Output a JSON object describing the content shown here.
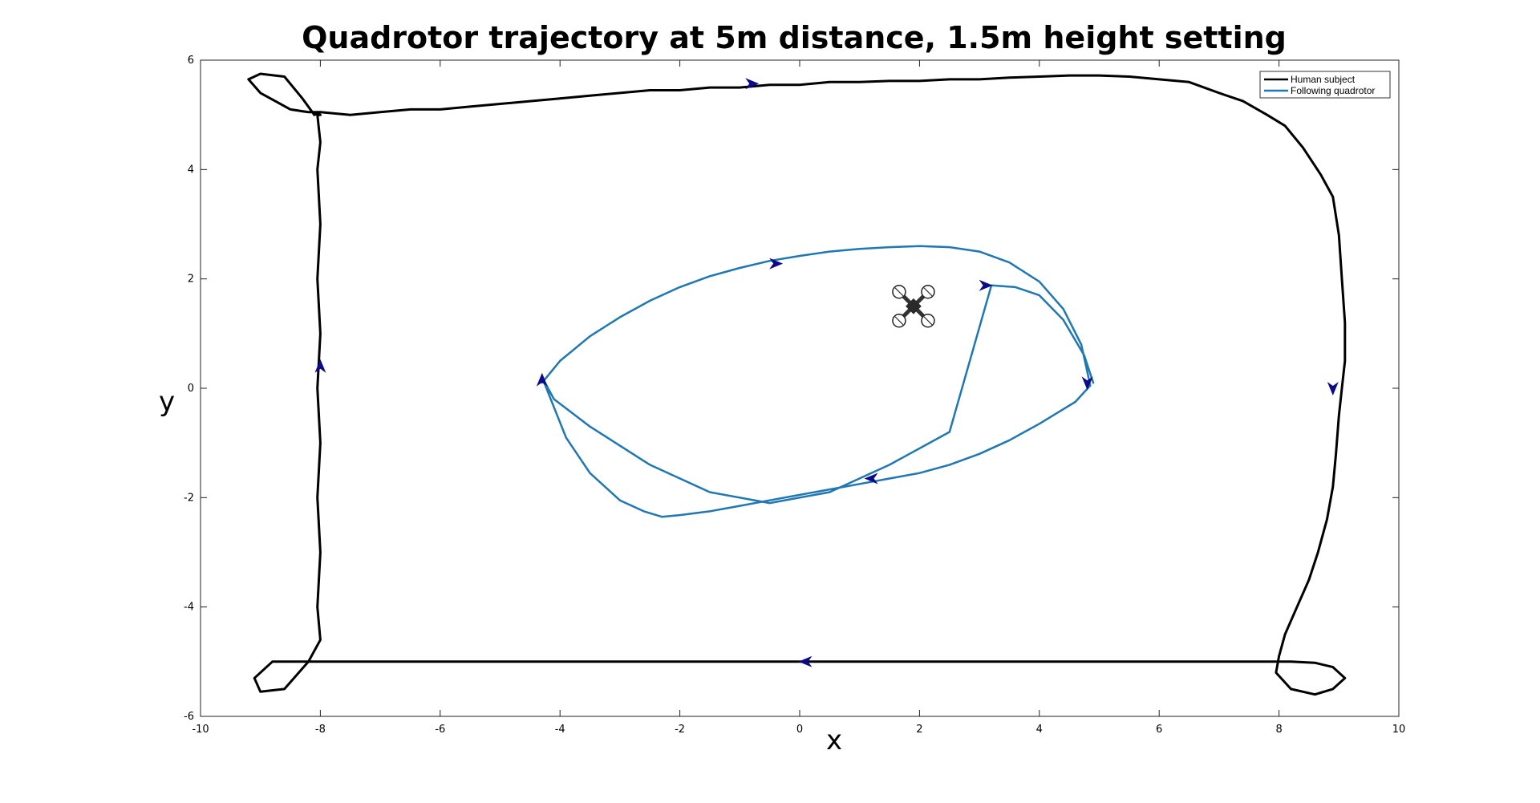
{
  "chart_data": {
    "type": "line",
    "title": "Quadrotor trajectory at 5m distance, 1.5m height setting",
    "xlabel": "x",
    "ylabel": "y",
    "xlim": [
      -10,
      10
    ],
    "ylim": [
      -6,
      6
    ],
    "xticks": [
      -10,
      -8,
      -6,
      -4,
      -2,
      0,
      2,
      4,
      6,
      8,
      10
    ],
    "yticks": [
      -6,
      -4,
      -2,
      0,
      2,
      4,
      6
    ],
    "grid": false,
    "legend_position": "top-right",
    "series": [
      {
        "name": "Human subject",
        "color": "#000000",
        "x": [
          -8.0,
          -7.5,
          -7.0,
          -6.5,
          -6.0,
          -5.5,
          -5.0,
          -4.5,
          -4.0,
          -3.5,
          -3.0,
          -2.5,
          -2.0,
          -1.5,
          -1.0,
          -0.5,
          0.0,
          0.5,
          1.0,
          1.5,
          2.0,
          2.5,
          3.0,
          3.5,
          4.0,
          4.5,
          5.0,
          5.5,
          6.0,
          6.5,
          7.0,
          7.4,
          7.8,
          8.1,
          8.4,
          8.7,
          8.9,
          9.0,
          9.05,
          9.1,
          9.1,
          9.05,
          9.0,
          8.95,
          8.9,
          8.8,
          8.65,
          8.5,
          8.3,
          8.1,
          8.0,
          7.95,
          8.2,
          8.6,
          8.9,
          9.1,
          8.9,
          8.6,
          8.2,
          8.0,
          7.5,
          7.0,
          6.5,
          6.0,
          5.5,
          5.0,
          4.5,
          4.0,
          3.5,
          3.0,
          2.5,
          2.0,
          1.5,
          1.0,
          0.5,
          0.0,
          -0.5,
          -1.0,
          -1.5,
          -2.0,
          -2.5,
          -3.0,
          -3.5,
          -4.0,
          -4.5,
          -5.0,
          -5.5,
          -6.0,
          -6.5,
          -7.0,
          -7.5,
          -8.0,
          -8.3,
          -8.8,
          -9.1,
          -9.0,
          -8.6,
          -8.2,
          -8.0,
          -8.05,
          -8.0,
          -8.05,
          -8.0,
          -8.05,
          -8.0,
          -8.05,
          -8.0,
          -8.05,
          -8.0,
          -8.05,
          -8.0,
          -8.05,
          -8.0,
          -8.2,
          -8.5,
          -9.0,
          -9.2,
          -9.0,
          -8.6,
          -8.3,
          -8.1,
          -8.0
        ],
        "y": [
          5.05,
          5.0,
          5.05,
          5.1,
          5.1,
          5.15,
          5.2,
          5.25,
          5.3,
          5.35,
          5.4,
          5.45,
          5.45,
          5.5,
          5.5,
          5.55,
          5.55,
          5.6,
          5.6,
          5.62,
          5.62,
          5.65,
          5.65,
          5.68,
          5.7,
          5.72,
          5.72,
          5.7,
          5.65,
          5.6,
          5.4,
          5.25,
          5.0,
          4.8,
          4.4,
          3.9,
          3.5,
          2.8,
          2.0,
          1.2,
          0.5,
          0.0,
          -0.5,
          -1.2,
          -1.8,
          -2.4,
          -3.0,
          -3.5,
          -4.0,
          -4.5,
          -4.9,
          -5.2,
          -5.5,
          -5.6,
          -5.5,
          -5.3,
          -5.1,
          -5.02,
          -5.0,
          -5.0,
          -5.0,
          -5.0,
          -5.0,
          -5.0,
          -5.0,
          -5.0,
          -5.0,
          -5.0,
          -5.0,
          -5.0,
          -5.0,
          -5.0,
          -5.0,
          -5.0,
          -5.0,
          -5.0,
          -5.0,
          -5.0,
          -5.0,
          -5.0,
          -5.0,
          -5.0,
          -5.0,
          -5.0,
          -5.0,
          -5.0,
          -5.0,
          -5.0,
          -5.0,
          -5.0,
          -5.0,
          -5.0,
          -5.0,
          -5.0,
          -5.3,
          -5.55,
          -5.5,
          -5.0,
          -4.6,
          -4.0,
          -3.0,
          -2.0,
          -1.0,
          0.0,
          1.0,
          2.0,
          3.0,
          4.0,
          4.5,
          5.0,
          5.0,
          5.02,
          5.05,
          5.05,
          5.1,
          5.4,
          5.65,
          5.75,
          5.7,
          5.3,
          5.0,
          5.05
        ]
      },
      {
        "name": "Following quadrotor",
        "color": "#1f77b4",
        "x": [
          -4.3,
          -4.0,
          -3.5,
          -3.0,
          -2.5,
          -2.0,
          -1.5,
          -1.0,
          -0.5,
          0.0,
          0.5,
          1.0,
          1.5,
          2.0,
          2.5,
          3.0,
          3.5,
          4.0,
          4.4,
          4.7,
          4.85,
          4.6,
          4.0,
          3.5,
          3.0,
          2.5,
          2.0,
          1.5,
          1.0,
          0.5,
          0.0,
          -0.5,
          -1.0,
          -1.5,
          -2.0,
          -2.3,
          -2.6,
          -3.0,
          -3.5,
          -3.9,
          -4.3,
          -4.1,
          -3.5,
          -2.5,
          -1.5,
          -0.5,
          0.5,
          1.5,
          2.5,
          3.2,
          3.6,
          4.0,
          4.4,
          4.75,
          4.9
        ],
        "y": [
          0.1,
          0.5,
          0.95,
          1.3,
          1.6,
          1.85,
          2.05,
          2.2,
          2.33,
          2.42,
          2.5,
          2.55,
          2.58,
          2.6,
          2.58,
          2.5,
          2.3,
          1.95,
          1.45,
          0.8,
          0.05,
          -0.25,
          -0.65,
          -0.95,
          -1.2,
          -1.4,
          -1.55,
          -1.65,
          -1.75,
          -1.85,
          -1.95,
          -2.05,
          -2.15,
          -2.25,
          -2.32,
          -2.35,
          -2.25,
          -2.05,
          -1.55,
          -0.9,
          0.2,
          -0.2,
          -0.7,
          -1.4,
          -1.9,
          -2.1,
          -1.9,
          -1.4,
          -0.8,
          1.88,
          1.85,
          1.7,
          1.25,
          0.6,
          0.1
        ]
      }
    ],
    "legend": [
      {
        "label": "Human subject",
        "color": "#000000"
      },
      {
        "label": "Following quadrotor",
        "color": "#1f77b4"
      }
    ],
    "quadrotor_icon": {
      "name": "quadrotor-icon",
      "x": 1.9,
      "y": 1.5
    },
    "direction_arrows": [
      {
        "x": -0.8,
        "y": 5.57,
        "dir": "right"
      },
      {
        "x": -8.0,
        "y": 0.4,
        "dir": "up"
      },
      {
        "x": 0.1,
        "y": -5.0,
        "dir": "left"
      },
      {
        "x": 8.9,
        "y": 0.0,
        "dir": "down"
      },
      {
        "x": -0.4,
        "y": 2.28,
        "dir": "right"
      },
      {
        "x": 3.1,
        "y": 1.88,
        "dir": "right"
      },
      {
        "x": 1.2,
        "y": -1.65,
        "dir": "left"
      },
      {
        "x": 4.8,
        "y": 0.1,
        "dir": "down"
      },
      {
        "x": -4.3,
        "y": 0.15,
        "dir": "up"
      }
    ]
  }
}
